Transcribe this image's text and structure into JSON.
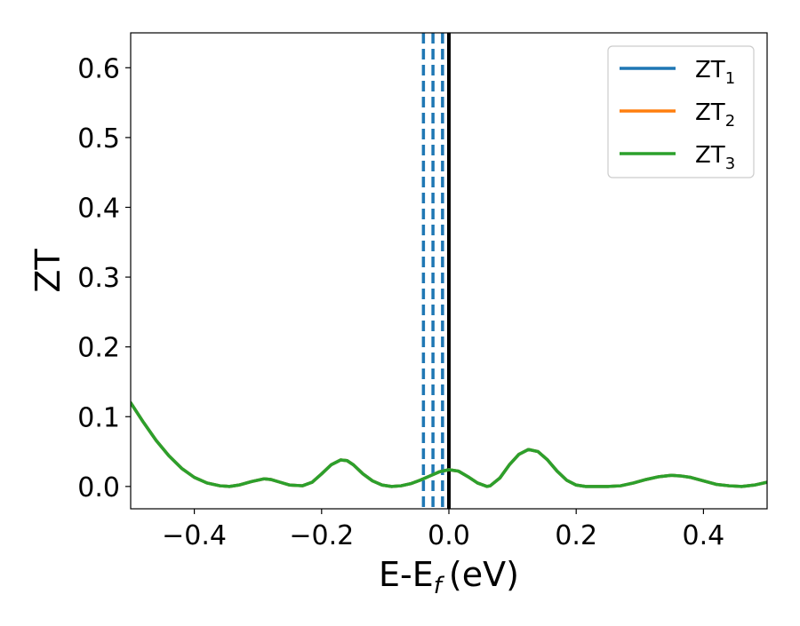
{
  "chart_data": {
    "type": "line",
    "xlabel": "E-E",
    "xlabel_subscript": "f",
    "xlabel_unit": "(eV)",
    "ylabel": "ZT",
    "xlim": [
      -0.5,
      0.5
    ],
    "ylim": [
      -0.032,
      0.65
    ],
    "x_ticks": [
      -0.4,
      -0.2,
      0.0,
      0.2,
      0.4
    ],
    "x_tick_labels": [
      "−0.4",
      "−0.2",
      "0.0",
      "0.2",
      "0.4"
    ],
    "y_ticks": [
      0.0,
      0.1,
      0.2,
      0.3,
      0.4,
      0.5,
      0.6
    ],
    "y_tick_labels": [
      "0.0",
      "0.1",
      "0.2",
      "0.3",
      "0.4",
      "0.5",
      "0.6"
    ],
    "grid": false,
    "legend_position": "top-right",
    "x": [
      -0.5,
      -0.48,
      -0.46,
      -0.44,
      -0.42,
      -0.4,
      -0.38,
      -0.36,
      -0.345,
      -0.33,
      -0.31,
      -0.29,
      -0.28,
      -0.265,
      -0.25,
      -0.23,
      -0.215,
      -0.2,
      -0.185,
      -0.17,
      -0.16,
      -0.15,
      -0.135,
      -0.12,
      -0.105,
      -0.09,
      -0.075,
      -0.06,
      -0.045,
      -0.03,
      -0.015,
      0.0,
      0.015,
      0.03,
      0.045,
      0.06,
      0.065,
      0.08,
      0.095,
      0.11,
      0.125,
      0.14,
      0.155,
      0.17,
      0.185,
      0.2,
      0.215,
      0.23,
      0.25,
      0.27,
      0.29,
      0.31,
      0.33,
      0.35,
      0.365,
      0.38,
      0.4,
      0.42,
      0.44,
      0.46,
      0.48,
      0.5
    ],
    "series": [
      {
        "name": "ZT",
        "name_subscript": "1",
        "color": "#1f77b4",
        "values": [
          0.12,
          0.092,
          0.066,
          0.044,
          0.026,
          0.013,
          0.005,
          0.001,
          0.0,
          0.002,
          0.007,
          0.011,
          0.01,
          0.006,
          0.002,
          0.001,
          0.006,
          0.018,
          0.031,
          0.038,
          0.037,
          0.031,
          0.018,
          0.008,
          0.002,
          0.0,
          0.001,
          0.004,
          0.009,
          0.015,
          0.021,
          0.024,
          0.022,
          0.014,
          0.005,
          0.0,
          0.001,
          0.012,
          0.031,
          0.046,
          0.053,
          0.05,
          0.038,
          0.022,
          0.009,
          0.002,
          0.0,
          0.0,
          0.0,
          0.001,
          0.005,
          0.01,
          0.014,
          0.016,
          0.015,
          0.013,
          0.008,
          0.003,
          0.001,
          0.0,
          0.002,
          0.006
        ]
      },
      {
        "name": "ZT",
        "name_subscript": "2",
        "color": "#ff7f0e",
        "values": [
          0.12,
          0.092,
          0.066,
          0.044,
          0.026,
          0.013,
          0.005,
          0.001,
          0.0,
          0.002,
          0.007,
          0.011,
          0.01,
          0.006,
          0.002,
          0.001,
          0.006,
          0.018,
          0.031,
          0.038,
          0.037,
          0.031,
          0.018,
          0.008,
          0.002,
          0.0,
          0.001,
          0.004,
          0.009,
          0.015,
          0.021,
          0.024,
          0.022,
          0.014,
          0.005,
          0.0,
          0.001,
          0.012,
          0.031,
          0.046,
          0.053,
          0.05,
          0.038,
          0.022,
          0.009,
          0.002,
          0.0,
          0.0,
          0.0,
          0.001,
          0.005,
          0.01,
          0.014,
          0.016,
          0.015,
          0.013,
          0.008,
          0.003,
          0.001,
          0.0,
          0.002,
          0.006
        ]
      },
      {
        "name": "ZT",
        "name_subscript": "3",
        "color": "#2ca02c",
        "values": [
          0.12,
          0.092,
          0.066,
          0.044,
          0.026,
          0.013,
          0.005,
          0.001,
          0.0,
          0.002,
          0.007,
          0.011,
          0.01,
          0.006,
          0.002,
          0.001,
          0.006,
          0.018,
          0.031,
          0.038,
          0.037,
          0.031,
          0.018,
          0.008,
          0.002,
          0.0,
          0.001,
          0.004,
          0.009,
          0.015,
          0.021,
          0.024,
          0.022,
          0.014,
          0.005,
          0.0,
          0.001,
          0.012,
          0.031,
          0.046,
          0.053,
          0.05,
          0.038,
          0.022,
          0.009,
          0.002,
          0.0,
          0.0,
          0.0,
          0.001,
          0.005,
          0.01,
          0.014,
          0.016,
          0.015,
          0.013,
          0.008,
          0.003,
          0.001,
          0.0,
          0.002,
          0.006
        ]
      }
    ],
    "vlines": [
      {
        "x": -0.04,
        "style": "dashed",
        "color": "#1f77b4"
      },
      {
        "x": -0.025,
        "style": "dashed",
        "color": "#1f77b4"
      },
      {
        "x": -0.01,
        "style": "dashed",
        "color": "#1f77b4"
      },
      {
        "x": 0.0,
        "style": "solid",
        "color": "#000000"
      }
    ]
  }
}
